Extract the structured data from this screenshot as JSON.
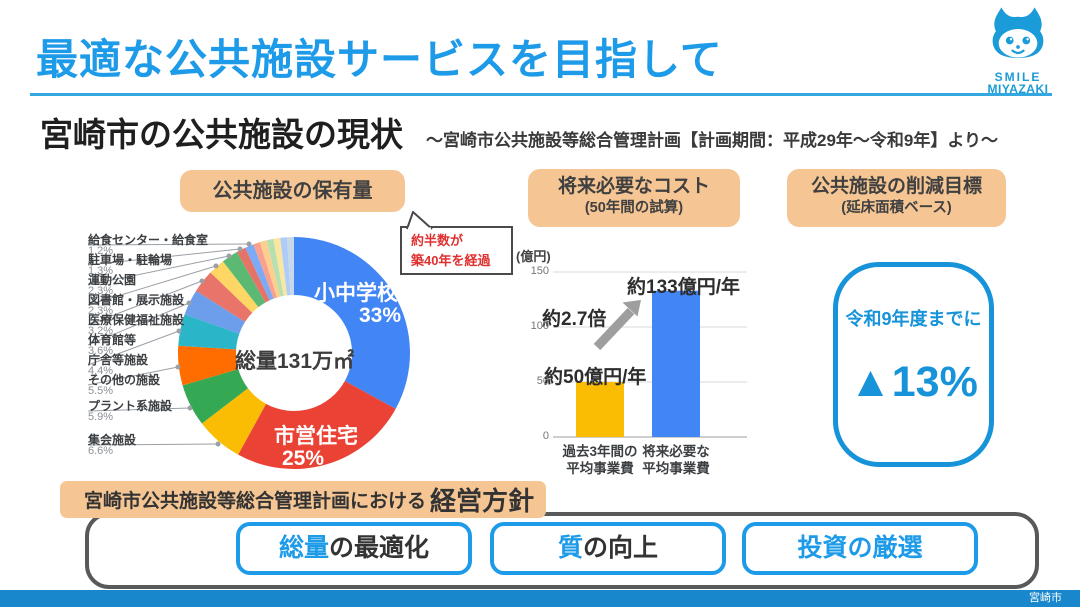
{
  "slide": {
    "title": "最適な公共施設サービスを目指して",
    "footer": "宮崎市"
  },
  "logo": {
    "smile": "SMILE",
    "miyazaki": "MIYAZAKI"
  },
  "overview": {
    "heading": "宮崎市の公共施設の現状",
    "subheading": "〜宮崎市公共施設等総合管理計画【計画期間：平成29年〜令和9年】より〜"
  },
  "panel_headers": {
    "holdings": "公共施設の保有量",
    "cost_line1": "将来必要なコスト",
    "cost_line2": "(50年間の試算)",
    "reduction_line1": "公共施設の削減目標",
    "reduction_line2": "(延床面積ベース)"
  },
  "callout": {
    "line1": "約半数が",
    "line2": "築40年を経過"
  },
  "chart_data": [
    {
      "type": "pie",
      "donut": true,
      "title": "公共施設の保有量",
      "center_label": "総量131万㎡",
      "slices": [
        {
          "label": "小中学校",
          "pct": 33,
          "pct_label": "33%",
          "color": "#4285F4"
        },
        {
          "label": "市営住宅",
          "pct": 25,
          "pct_label": "25%",
          "color": "#EA4335"
        },
        {
          "label": "集会施設",
          "pct": 6.6,
          "pct_label": "6.6%",
          "color": "#FBBC04"
        },
        {
          "label": "プラント系施設",
          "pct": 5.9,
          "pct_label": "5.9%",
          "color": "#34A853"
        },
        {
          "label": "その他の施設",
          "pct": 5.5,
          "pct_label": "5.5%",
          "color": "#FF6D01"
        },
        {
          "label": "庁舎等施設",
          "pct": 4.4,
          "pct_label": "4.4%",
          "color": "#2BB5C8"
        },
        {
          "label": "体育館等",
          "pct": 3.6,
          "pct_label": "3.6%",
          "color": "#6D9EEB"
        },
        {
          "label": "医療保健福祉施設",
          "pct": 3.2,
          "pct_label": "3.2%",
          "color": "#E9756A"
        },
        {
          "label": "図書館・展示施設",
          "pct": 2.3,
          "pct_label": "2.3%",
          "color": "#FDD663"
        },
        {
          "label": "運動公園",
          "pct": 2.3,
          "pct_label": "2.3%",
          "color": "#5BB974"
        },
        {
          "label": "駐車場・駐輪場",
          "pct": 1.3,
          "pct_label": "1.3%",
          "color": "#E57368"
        },
        {
          "label": "給食センター・給食室",
          "pct": 1.2,
          "pct_label": "1.2%",
          "color": "#7BAAF7"
        }
      ],
      "unlabeled_remainder": {
        "pct": 5.7,
        "colors": [
          "#F9A18C",
          "#FCCF8E",
          "#B7DFB0",
          "#F9E6A0",
          "#AECBFA",
          "#C7D8E8"
        ]
      }
    },
    {
      "type": "bar",
      "unit_label": "(億円)",
      "categories": [
        "過去3年間の\n平均事業費",
        "将来必要な\n平均事業費"
      ],
      "values": [
        50,
        133
      ],
      "bar_colors": [
        "#FBBC04",
        "#4285F4"
      ],
      "value_labels": [
        "約50億円/年",
        "約133億円/年"
      ],
      "growth_annotation": "約2.7倍",
      "ylim": [
        0,
        150
      ],
      "yticks": [
        0,
        50,
        100,
        150
      ],
      "grid": true
    }
  ],
  "target_box": {
    "line1": "令和9年度までに",
    "value": "▲13%"
  },
  "policy": {
    "label_prefix": "宮崎市公共施設等総合管理計画における",
    "label_emphasis": "経営方針",
    "buttons": [
      {
        "highlight": "総量",
        "rest": "の最適化"
      },
      {
        "highlight": "質",
        "rest": "の向上"
      },
      {
        "highlight": "投資の厳選",
        "rest": ""
      }
    ]
  },
  "colors": {
    "accent_blue": "#1E9BE8",
    "peach": "#F5C694",
    "target_blue": "#1693D9",
    "footer_blue": "#1887CB",
    "callout_red": "#E03131"
  }
}
